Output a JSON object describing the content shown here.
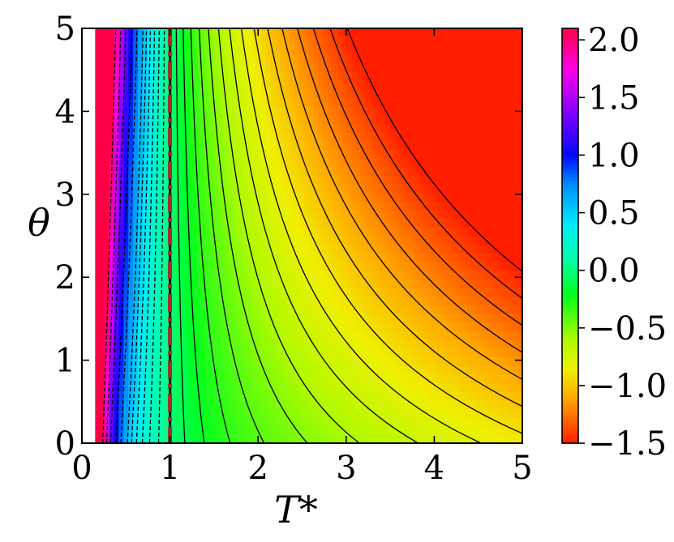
{
  "chart_data": {
    "type": "heatmap",
    "title": "",
    "xlabel": "T*",
    "ylabel": "θ",
    "xlim": [
      0,
      5
    ],
    "ylim": [
      0,
      5
    ],
    "xticks": [
      "0",
      "1",
      "2",
      "3",
      "4",
      "5"
    ],
    "yticks": [
      "0",
      "1",
      "2",
      "3",
      "4",
      "5"
    ],
    "colorbar": {
      "range": [
        -1.5,
        2.1
      ],
      "ticks": [
        "2.0",
        "1.5",
        "1.0",
        "0.5",
        "0.0",
        "−0.5",
        "−1.0",
        "−1.5"
      ],
      "tick_values": [
        2.0,
        1.5,
        1.0,
        0.5,
        0.0,
        -0.5,
        -1.0,
        -1.5
      ],
      "colormap": "hsv-like: red (low) → orange → yellow → green → cyan → blue → magenta → red (high)"
    },
    "field_description": "contour fill of a function of (T*, θ); values fall steeply from large positive near T*≈0.15 to about -1.5 at T*=5, θ=0",
    "contour_levels_negative_solid": [
      -0.1,
      -0.2,
      -0.3,
      -0.4,
      -0.5,
      -0.6,
      -0.7,
      -0.8,
      -0.9,
      -1.0,
      -1.1,
      -1.2,
      -1.3,
      -1.4,
      -1.5
    ],
    "contour_levels_positive_dashed": [
      0.1,
      0.2,
      0.3,
      0.4,
      0.5,
      0.6,
      0.8,
      1.0,
      1.3,
      1.6,
      2.0
    ],
    "zero_contour_bold": true,
    "reference_line": {
      "x": 1,
      "style": "dash-dot",
      "color": "#a52a2a"
    },
    "x_start": 0.15
  }
}
